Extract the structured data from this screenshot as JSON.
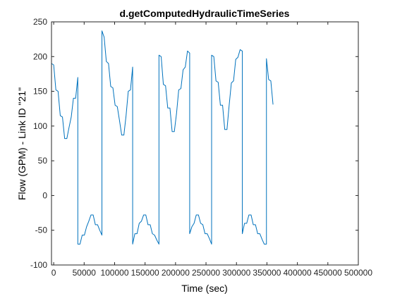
{
  "chart_data": {
    "type": "line",
    "title": "d.getComputedHydraulicTimeSeries",
    "xlabel": "Time (sec)",
    "ylabel": "Flow (GPM) - Link ID \"21\"",
    "xlim": [
      -3600,
      500000
    ],
    "ylim": [
      -100,
      250
    ],
    "xticks": [
      0,
      50000,
      100000,
      150000,
      200000,
      250000,
      300000,
      350000,
      400000,
      450000,
      500000
    ],
    "xtick_labels": [
      "0",
      "50000",
      "100000",
      "150000",
      "200000",
      "250000",
      "300000",
      "350000",
      "400000",
      "450000",
      "500000"
    ],
    "yticks": [
      -100,
      -50,
      0,
      50,
      100,
      150,
      200,
      250
    ],
    "ytick_labels": [
      "-100",
      "-50",
      "0",
      "50",
      "100",
      "150",
      "200",
      "250"
    ],
    "grid": false,
    "line_color": "#0072BD",
    "series": [
      {
        "x": [
          -3600,
          0,
          3600,
          7200,
          10800,
          14400,
          18000,
          21600,
          25200,
          28800,
          32400,
          36000,
          39600,
          39601,
          43200,
          46800,
          50400,
          54000,
          57600,
          61200,
          64800,
          68400,
          72000,
          75600,
          79200,
          79201,
          82800,
          86400,
          90000,
          93600,
          97200,
          100800,
          104400,
          108000,
          111600,
          115200,
          118800,
          122400,
          126000,
          129600,
          129601,
          133200,
          136800,
          140400,
          144000,
          147600,
          151200,
          154800,
          158400,
          162000,
          165600,
          169200,
          172800,
          172801,
          176400,
          180000,
          183600,
          187200,
          190800,
          194400,
          198000,
          201600,
          205200,
          208800,
          212400,
          216000,
          219600,
          223200,
          223201,
          226800,
          230400,
          234000,
          237600,
          241200,
          244800,
          248400,
          252000,
          255600,
          259200,
          259201,
          262800,
          266400,
          270000,
          273600,
          277200,
          280800,
          284400,
          288000,
          291600,
          295200,
          298800,
          302400,
          306000,
          309600,
          309601,
          313200,
          316800,
          320400,
          324000,
          327600,
          331200,
          334800,
          338400,
          342000,
          345600,
          349200,
          349201,
          352800,
          356400,
          360000
        ],
        "y": [
          190,
          188,
          152,
          150,
          115,
          113,
          82,
          82,
          98,
          113,
          140,
          140,
          170,
          -70,
          -70,
          -57,
          -57,
          -45,
          -37,
          -28,
          -28,
          -42,
          -42,
          -50,
          -57,
          237,
          228,
          193,
          190,
          157,
          155,
          130,
          128,
          108,
          87,
          87,
          115,
          150,
          152,
          185,
          -70,
          -55,
          -55,
          -40,
          -37,
          -28,
          -28,
          -42,
          -42,
          -55,
          -57,
          -64,
          -70,
          202,
          200,
          160,
          158,
          126,
          126,
          92,
          92,
          118,
          152,
          154,
          181,
          185,
          208,
          205,
          -55,
          -45,
          -40,
          -28,
          -28,
          -40,
          -42,
          -55,
          -55,
          -62,
          -70,
          202,
          200,
          165,
          163,
          130,
          130,
          95,
          95,
          130,
          162,
          165,
          196,
          199,
          210,
          208,
          -55,
          -40,
          -40,
          -28,
          -28,
          -42,
          -42,
          -55,
          -55,
          -63,
          -70,
          -70,
          197,
          167,
          165,
          131
        ]
      }
    ]
  }
}
